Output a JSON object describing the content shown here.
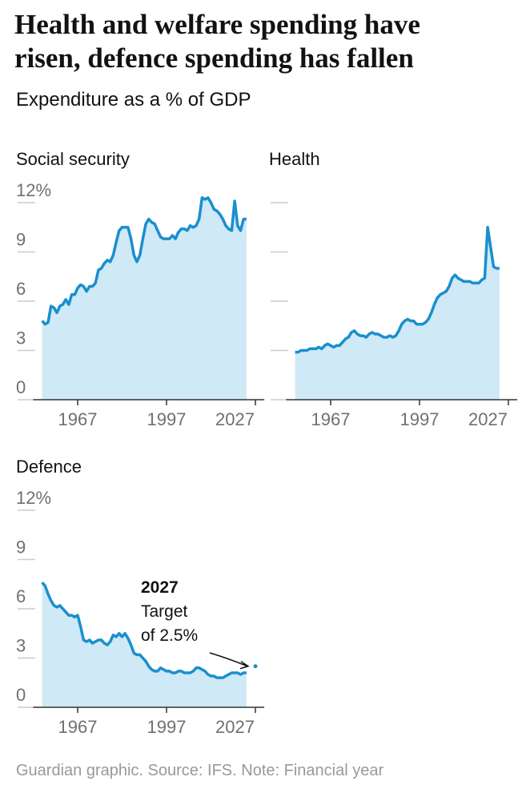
{
  "header": {
    "title": [
      "Health and welfare spending have",
      "risen, defence spending has fallen"
    ],
    "subtitle": "Expenditure as a % of GDP"
  },
  "footer": "Guardian graphic. Source: IFS. Note: Financial year",
  "chart_data": [
    {
      "type": "area",
      "title": "Social security",
      "color": "#1a8fce",
      "fill": "#cfe9f7",
      "xlim": [
        1952,
        2030
      ],
      "xticks": [
        1967,
        1997,
        2027
      ],
      "ylim": [
        0,
        12
      ],
      "yticks": [
        {
          "value": 12,
          "label": "12%"
        },
        9,
        6,
        3,
        0
      ],
      "show_ytick_labels": true,
      "x": [
        1955,
        1956,
        1957,
        1958,
        1959,
        1960,
        1961,
        1962,
        1963,
        1964,
        1965,
        1966,
        1967,
        1968,
        1969,
        1970,
        1971,
        1972,
        1973,
        1974,
        1975,
        1976,
        1977,
        1978,
        1979,
        1980,
        1981,
        1982,
        1983,
        1984,
        1985,
        1986,
        1987,
        1988,
        1989,
        1990,
        1991,
        1992,
        1993,
        1994,
        1995,
        1996,
        1997,
        1998,
        1999,
        2000,
        2001,
        2002,
        2003,
        2004,
        2005,
        2006,
        2007,
        2008,
        2009,
        2010,
        2011,
        2012,
        2013,
        2014,
        2015,
        2016,
        2017,
        2018,
        2019,
        2020,
        2021,
        2022,
        2023,
        2024
      ],
      "values": [
        4.8,
        4.6,
        4.7,
        5.7,
        5.6,
        5.3,
        5.7,
        5.8,
        6.1,
        5.8,
        6.4,
        6.4,
        6.8,
        7.0,
        6.9,
        6.6,
        6.9,
        6.9,
        7.1,
        7.9,
        8.0,
        8.3,
        8.5,
        8.4,
        8.8,
        9.6,
        10.3,
        10.5,
        10.5,
        10.5,
        9.8,
        8.8,
        8.4,
        8.8,
        9.8,
        10.7,
        11.0,
        10.8,
        10.7,
        10.3,
        9.9,
        9.8,
        9.8,
        9.8,
        10.0,
        9.8,
        10.2,
        10.4,
        10.4,
        10.3,
        10.6,
        10.5,
        10.6,
        11.0,
        12.3,
        12.2,
        12.3,
        12.0,
        11.6,
        11.5,
        11.3,
        11.0,
        10.6,
        10.4,
        10.3,
        12.1,
        10.6,
        10.3,
        11.0,
        11.0
      ]
    },
    {
      "type": "area",
      "title": "Health",
      "color": "#1a8fce",
      "fill": "#cfe9f7",
      "xlim": [
        1952,
        2030
      ],
      "xticks": [
        1967,
        1997,
        2027
      ],
      "ylim": [
        0,
        12
      ],
      "yticks": [
        12,
        9,
        6,
        3,
        0
      ],
      "show_ytick_labels": false,
      "x": [
        1955,
        1956,
        1957,
        1958,
        1959,
        1960,
        1961,
        1962,
        1963,
        1964,
        1965,
        1966,
        1967,
        1968,
        1969,
        1970,
        1971,
        1972,
        1973,
        1974,
        1975,
        1976,
        1977,
        1978,
        1979,
        1980,
        1981,
        1982,
        1983,
        1984,
        1985,
        1986,
        1987,
        1988,
        1989,
        1990,
        1991,
        1992,
        1993,
        1994,
        1995,
        1996,
        1997,
        1998,
        1999,
        2000,
        2001,
        2002,
        2003,
        2004,
        2005,
        2006,
        2007,
        2008,
        2009,
        2010,
        2011,
        2012,
        2013,
        2014,
        2015,
        2016,
        2017,
        2018,
        2019,
        2020,
        2021,
        2022,
        2023,
        2024
      ],
      "values": [
        2.9,
        2.9,
        3.0,
        3.0,
        3.0,
        3.1,
        3.1,
        3.1,
        3.2,
        3.1,
        3.3,
        3.4,
        3.3,
        3.2,
        3.3,
        3.3,
        3.5,
        3.7,
        3.8,
        4.1,
        4.2,
        4.0,
        3.9,
        3.9,
        3.8,
        4.0,
        4.1,
        4.0,
        4.0,
        3.9,
        3.8,
        3.8,
        3.9,
        3.8,
        3.9,
        4.2,
        4.6,
        4.8,
        4.9,
        4.8,
        4.8,
        4.6,
        4.6,
        4.6,
        4.7,
        4.9,
        5.3,
        5.8,
        6.2,
        6.4,
        6.5,
        6.6,
        6.9,
        7.4,
        7.6,
        7.4,
        7.3,
        7.2,
        7.2,
        7.2,
        7.1,
        7.1,
        7.1,
        7.3,
        7.4,
        10.5,
        9.3,
        8.1,
        8.0,
        8.0
      ]
    },
    {
      "type": "area",
      "title": "Defence",
      "color": "#1a8fce",
      "fill": "#cfe9f7",
      "xlim": [
        1952,
        2030
      ],
      "xticks": [
        1967,
        1997,
        2027
      ],
      "ylim": [
        0,
        12
      ],
      "yticks": [
        {
          "value": 12,
          "label": "12%"
        },
        9,
        6,
        3,
        0
      ],
      "show_ytick_labels": true,
      "x": [
        1955,
        1956,
        1957,
        1958,
        1959,
        1960,
        1961,
        1962,
        1963,
        1964,
        1965,
        1966,
        1967,
        1968,
        1969,
        1970,
        1971,
        1972,
        1973,
        1974,
        1975,
        1976,
        1977,
        1978,
        1979,
        1980,
        1981,
        1982,
        1983,
        1984,
        1985,
        1986,
        1987,
        1988,
        1989,
        1990,
        1991,
        1992,
        1993,
        1994,
        1995,
        1996,
        1997,
        1998,
        1999,
        2000,
        2001,
        2002,
        2003,
        2004,
        2005,
        2006,
        2007,
        2008,
        2009,
        2010,
        2011,
        2012,
        2013,
        2014,
        2015,
        2016,
        2017,
        2018,
        2019,
        2020,
        2021,
        2022,
        2023,
        2024
      ],
      "values": [
        7.6,
        7.4,
        6.9,
        6.5,
        6.2,
        6.1,
        6.2,
        6.0,
        5.8,
        5.6,
        5.6,
        5.5,
        5.6,
        4.9,
        4.1,
        4.0,
        4.1,
        3.9,
        4.0,
        4.1,
        4.1,
        3.9,
        3.8,
        4.0,
        4.4,
        4.3,
        4.5,
        4.3,
        4.5,
        4.2,
        3.8,
        3.3,
        3.2,
        3.2,
        3.0,
        2.8,
        2.5,
        2.3,
        2.2,
        2.2,
        2.4,
        2.3,
        2.2,
        2.2,
        2.1,
        2.1,
        2.2,
        2.2,
        2.1,
        2.1,
        2.1,
        2.2,
        2.4,
        2.4,
        2.3,
        2.2,
        2.0,
        1.9,
        1.9,
        1.8,
        1.8,
        1.8,
        1.9,
        2.0,
        2.1,
        2.1,
        2.1,
        2.0,
        2.1,
        2.1
      ],
      "target": {
        "x": 2027,
        "value": 2.5
      },
      "annotation": {
        "title": "2027",
        "lines": [
          "Target",
          "of 2.5%"
        ]
      }
    }
  ]
}
